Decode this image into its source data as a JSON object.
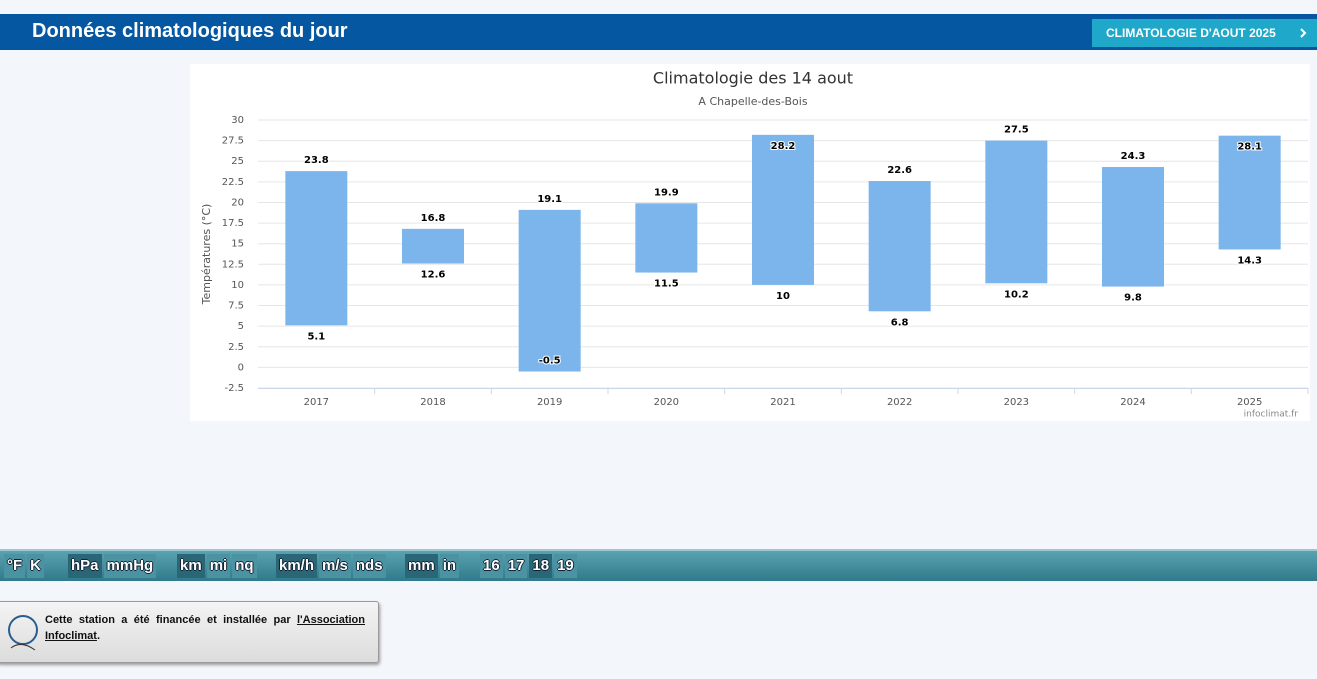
{
  "header": {
    "title": "Données climatologiques du jour",
    "button": "CLIMATOLOGIE D'AOUT 2025"
  },
  "chart_data": {
    "type": "columnrange",
    "title": "Climatologie des 14 aout",
    "subtitle": "A Chapelle-des-Bois",
    "y_label": "Températures (°C)",
    "credit": "infoclimat.fr",
    "categories": [
      "2017",
      "2018",
      "2019",
      "2020",
      "2021",
      "2022",
      "2023",
      "2024",
      "2025"
    ],
    "low": [
      5.1,
      12.6,
      -0.5,
      11.5,
      10,
      6.8,
      10.2,
      9.8,
      14.3
    ],
    "high": [
      23.8,
      16.8,
      19.1,
      19.9,
      28.2,
      22.6,
      27.5,
      24.3,
      28.1
    ],
    "color": "#7cb5ec",
    "ylim": [
      -2.5,
      30
    ],
    "yticks": [
      -2.5,
      0,
      2.5,
      5,
      7.5,
      10,
      12.5,
      15,
      17.5,
      20,
      22.5,
      25,
      27.5,
      30
    ],
    "grid": true
  },
  "toolbar": [
    [
      "°F",
      "K"
    ],
    [
      "hPa",
      "mmHg"
    ],
    [
      "km",
      "mi",
      "nq"
    ],
    [
      "km/h",
      "m/s",
      "nds"
    ],
    [
      "mm",
      "in"
    ],
    [
      "16",
      "17",
      "18",
      "19"
    ]
  ],
  "note": {
    "text": "Cette station a été financée et installée par ",
    "link": "l'Association Infoclimat",
    "end": "."
  }
}
